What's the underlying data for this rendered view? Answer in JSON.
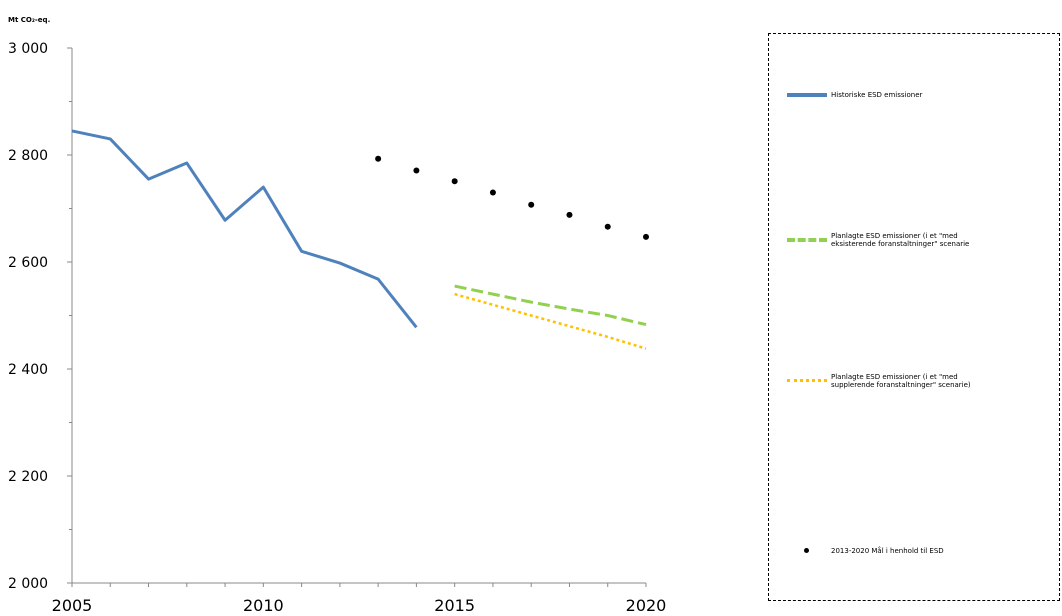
{
  "chart_data": {
    "type": "line",
    "unit_label": "Mt CO₂-eq.",
    "xlabel": "",
    "ylabel": "",
    "xlim": [
      2005,
      2020
    ],
    "ylim": [
      2000,
      3000
    ],
    "x_ticks": [
      "2005",
      "2010",
      "2015",
      "2020"
    ],
    "y_ticks": [
      "2 000",
      "2 200",
      "2 400",
      "2 600",
      "2 800",
      "3 000"
    ],
    "legend_position": "right",
    "series": [
      {
        "name": "Historiske ESD emissioner",
        "style": "solid",
        "color": "#4f81bd",
        "x": [
          2005,
          2006,
          2007,
          2008,
          2009,
          2010,
          2011,
          2012,
          2013,
          2014
        ],
        "y": [
          2845,
          2830,
          2755,
          2785,
          2678,
          2740,
          2620,
          2598,
          2568,
          2478
        ]
      },
      {
        "name": "Planlagte ESD emissioner (i et \"med eksisterende foranstaltninger\" scenarie)",
        "style": "dashed",
        "color": "#92d050",
        "x": [
          2015,
          2016,
          2017,
          2018,
          2019,
          2020
        ],
        "y": [
          2555,
          2540,
          2525,
          2512,
          2500,
          2483
        ]
      },
      {
        "name": "Planlagte ESD emissioner (i et \"med supplerende foranstaltninger\" scenarie)",
        "style": "dotted",
        "color": "#ffc000",
        "x": [
          2015,
          2016,
          2017,
          2018,
          2019,
          2020
        ],
        "y": [
          2540,
          2520,
          2500,
          2480,
          2460,
          2438
        ]
      },
      {
        "name": "2013-2020 Mål i henhold til ESD",
        "style": "markers",
        "color": "#000000",
        "x": [
          2013,
          2014,
          2015,
          2016,
          2017,
          2018,
          2019,
          2020
        ],
        "y": [
          2793,
          2771,
          2751,
          2730,
          2707,
          2688,
          2666,
          2647
        ]
      }
    ]
  },
  "legend": {
    "items": [
      {
        "line1": "Historiske ESD emissioner",
        "line2": ""
      },
      {
        "line1": "Planlagte ESD emissioner (i et \"med",
        "line2": "eksisterende foranstaltninger\" scenarie"
      },
      {
        "line1": "Planlagte ESD emissioner (i et \"med",
        "line2": "supplerende foranstaltninger\" scenarie)"
      },
      {
        "line1": "2013-2020 Mål i henhold til ESD",
        "line2": ""
      }
    ]
  }
}
